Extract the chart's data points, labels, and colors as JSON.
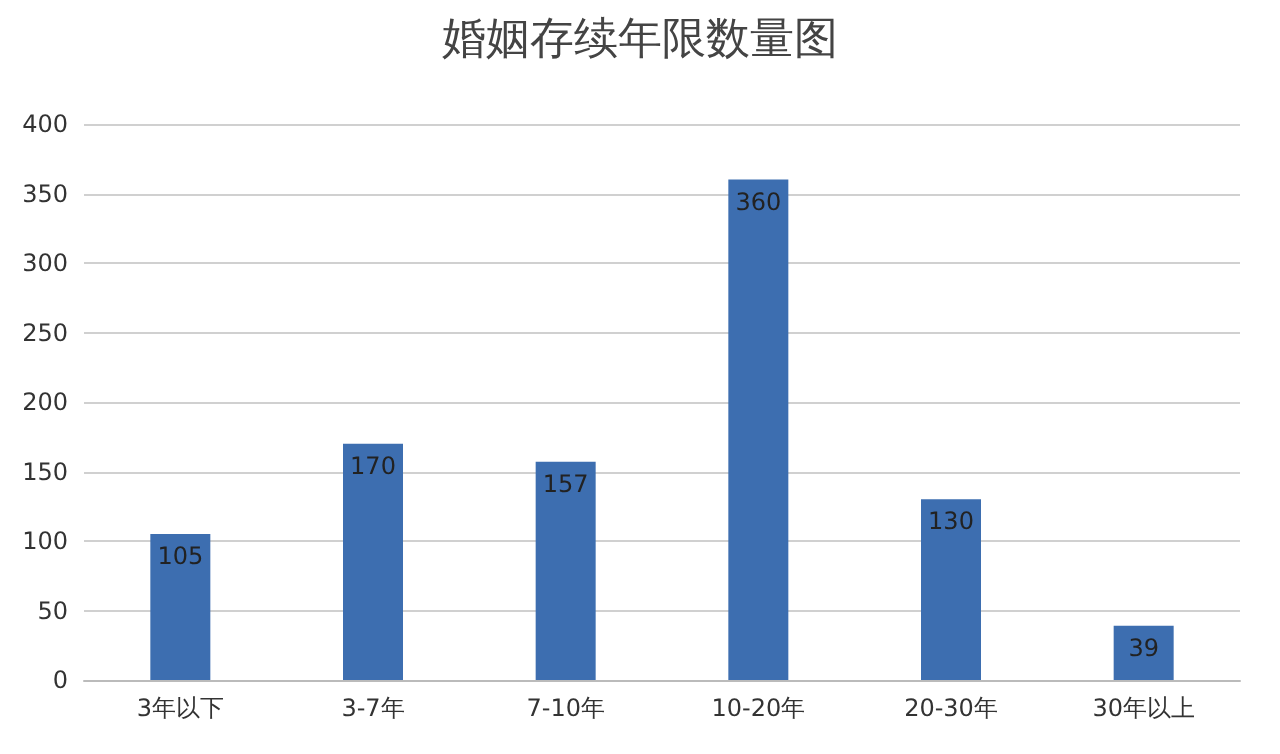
{
  "chart_data": {
    "type": "bar",
    "title": "婚姻存续年限数量图",
    "categories": [
      "3年以下",
      "3-7年",
      "7-10年",
      "10-20年",
      "20-30年",
      "30年以上"
    ],
    "values": [
      105,
      170,
      157,
      360,
      130,
      39
    ],
    "color": "#3d6eb0",
    "ylim": [
      0,
      400
    ],
    "yticks": [
      0,
      50,
      100,
      150,
      200,
      250,
      300,
      350,
      400
    ],
    "grid": "y",
    "data_labels": true
  }
}
